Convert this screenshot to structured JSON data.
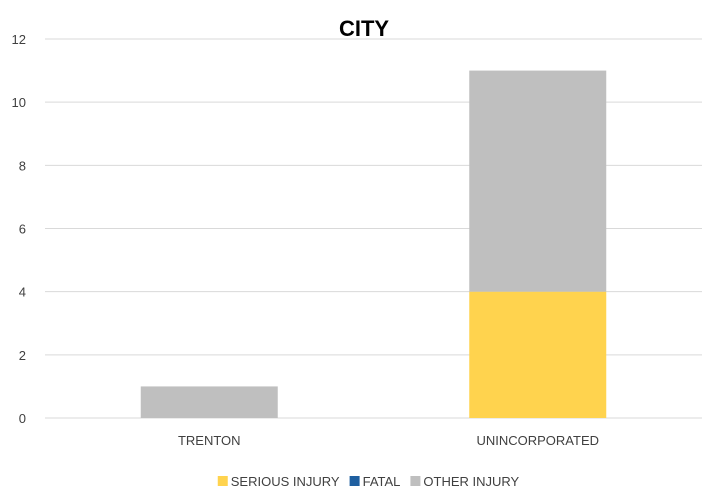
{
  "chart_data": {
    "type": "bar",
    "stacked": true,
    "title": "CITY",
    "xlabel": "",
    "ylabel": "",
    "ylim": [
      0,
      12
    ],
    "yticks": [
      0,
      2,
      4,
      6,
      8,
      10,
      12
    ],
    "grid": true,
    "legend_position": "bottom",
    "categories": [
      "TRENTON",
      "UNINCORPORATED"
    ],
    "series": [
      {
        "name": "SERIOUS INJURY",
        "color": "#ffd34e",
        "values": [
          0,
          4
        ]
      },
      {
        "name": "FATAL",
        "color": "#1f5fa0",
        "values": [
          0,
          0
        ]
      },
      {
        "name": "OTHER INJURY",
        "color": "#bfbfbf",
        "values": [
          1,
          7
        ]
      }
    ]
  }
}
